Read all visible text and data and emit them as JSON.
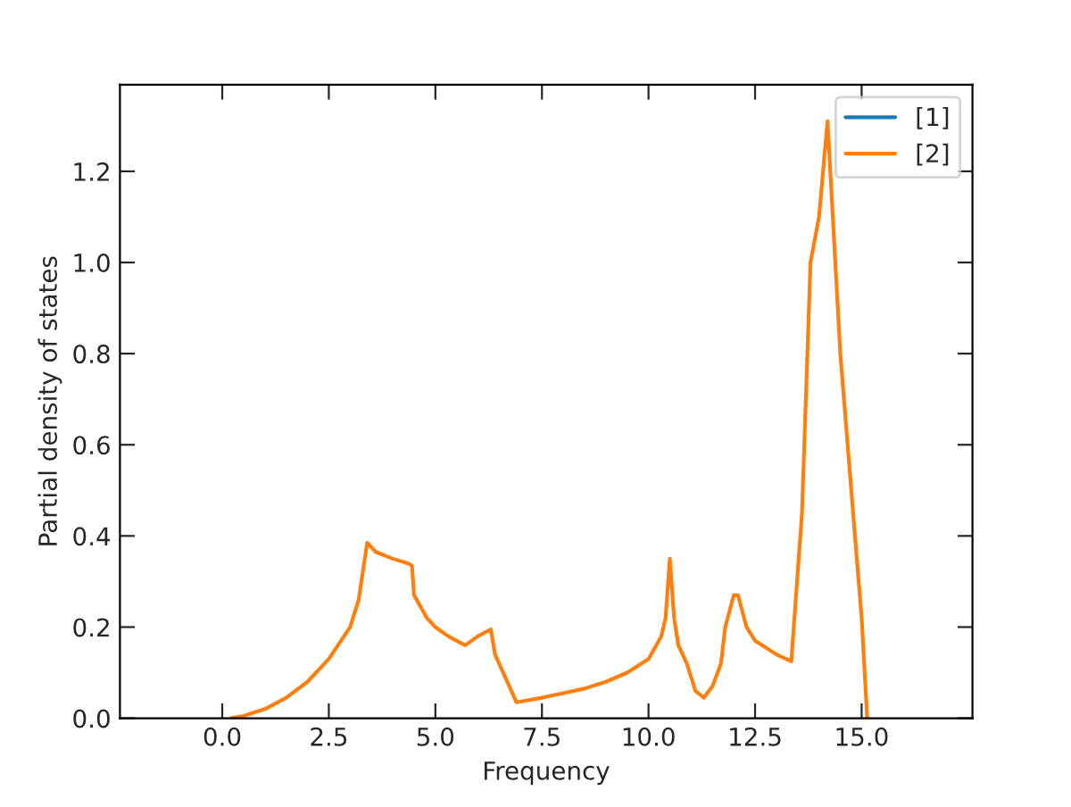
{
  "chart_data": {
    "type": "line",
    "xlabel": "Frequency",
    "ylabel": "Partial density of states",
    "x": [
      0.2,
      0.5,
      1.0,
      1.5,
      2.0,
      2.5,
      3.0,
      3.2,
      3.4,
      3.6,
      4.0,
      4.35,
      4.45,
      4.5,
      4.8,
      5.0,
      5.3,
      5.7,
      6.0,
      6.3,
      6.4,
      6.9,
      7.5,
      8.0,
      8.5,
      9.0,
      9.5,
      10.0,
      10.3,
      10.4,
      10.5,
      10.6,
      10.7,
      10.9,
      11.1,
      11.3,
      11.5,
      11.7,
      11.8,
      12.0,
      12.1,
      12.3,
      12.5,
      13.0,
      13.35,
      13.6,
      13.8,
      14.0,
      14.2,
      14.5,
      14.8,
      15.0,
      15.13
    ],
    "series": [
      {
        "name": "[1]",
        "color": "#1f77b4",
        "values": [
          null,
          null,
          null,
          null,
          null,
          null,
          null,
          null,
          null,
          null,
          null,
          null,
          null,
          null,
          null,
          null,
          null,
          null,
          null,
          null,
          null,
          null,
          null,
          null,
          null,
          null,
          null,
          null,
          null,
          null,
          null,
          null,
          null,
          null,
          null,
          null,
          null,
          null,
          null,
          null,
          null,
          null,
          null,
          null,
          null,
          null,
          null,
          null,
          null,
          null,
          null,
          null,
          null
        ]
      },
      {
        "name": "[2]",
        "color": "#ff7f0e",
        "values": [
          0,
          0.005,
          0.02,
          0.045,
          0.08,
          0.13,
          0.2,
          0.26,
          0.385,
          0.365,
          0.35,
          0.34,
          0.335,
          0.27,
          0.22,
          0.2,
          0.18,
          0.16,
          0.18,
          0.195,
          0.14,
          0.035,
          0.045,
          0.055,
          0.065,
          0.08,
          0.1,
          0.13,
          0.18,
          0.22,
          0.35,
          0.22,
          0.16,
          0.12,
          0.06,
          0.045,
          0.07,
          0.12,
          0.2,
          0.27,
          0.27,
          0.2,
          0.17,
          0.14,
          0.125,
          0.45,
          1.0,
          1.1,
          1.31,
          0.8,
          0.45,
          0.22,
          0.0
        ]
      }
    ],
    "xlim": [
      -2.4,
      17.6
    ],
    "ylim": [
      0,
      1.39
    ],
    "xticks": [
      {
        "value": 0,
        "label": "0.0"
      },
      2.5,
      {
        "value": 5,
        "label": "5.0"
      },
      7.5,
      {
        "value": 10,
        "label": "10.0"
      },
      12.5,
      {
        "value": 15,
        "label": "15.0"
      }
    ],
    "yticks": [
      {
        "value": 0,
        "label": "0.0"
      },
      0.2,
      0.4,
      0.6,
      0.8,
      {
        "value": 1,
        "label": "1.0"
      },
      1.2
    ],
    "grid": false,
    "legend": "top right"
  }
}
